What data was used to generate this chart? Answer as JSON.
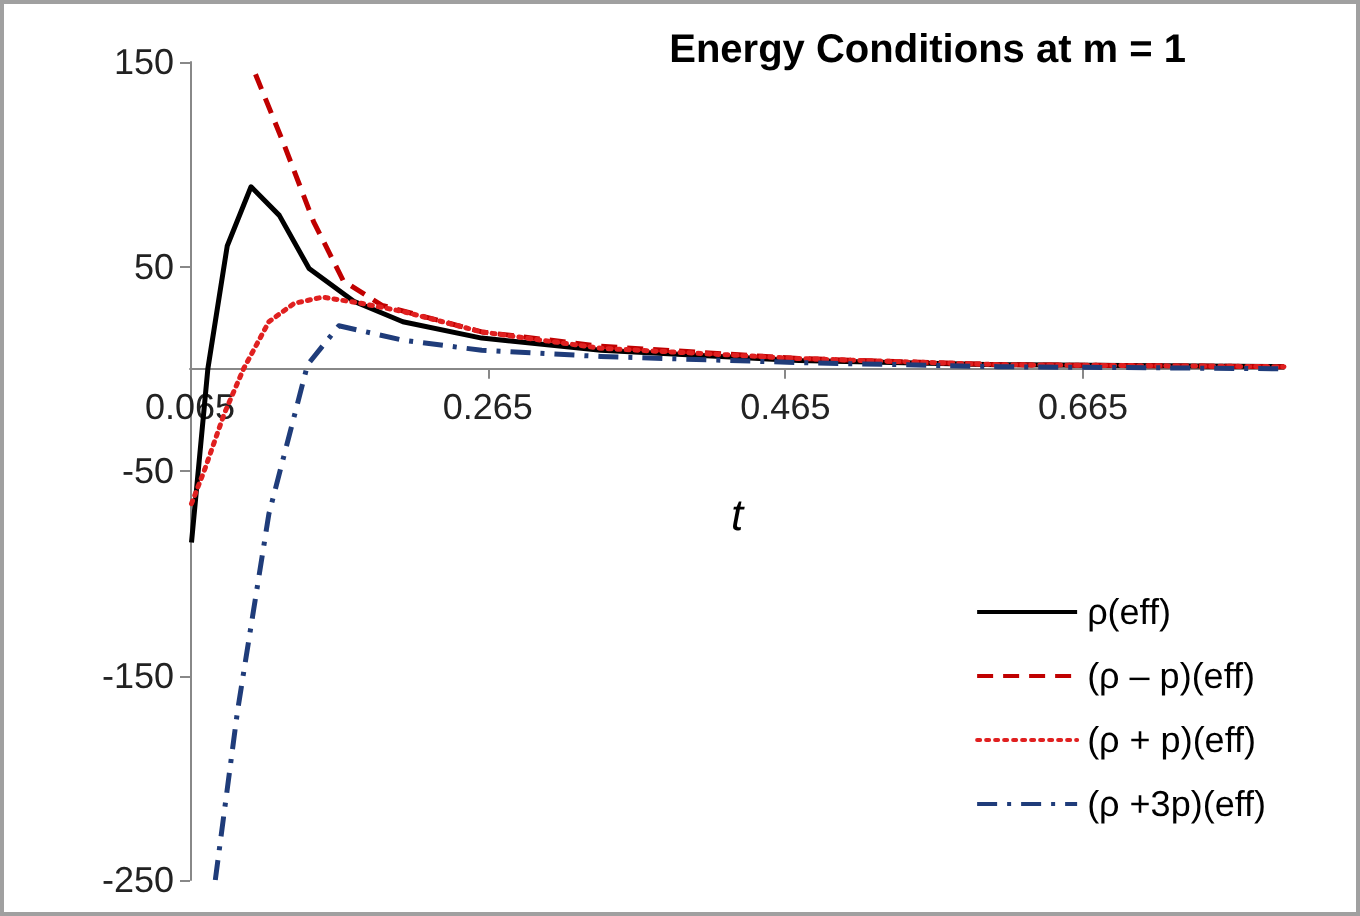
{
  "chart_data": {
    "type": "line",
    "title": "Energy Conditions at m = 1",
    "xlabel": "t",
    "xlim": [
      0.065,
      0.8
    ],
    "xticks": [
      0.065,
      0.265,
      0.465,
      0.665
    ],
    "ylim": [
      -250,
      150
    ],
    "yticks": [
      -250,
      -150,
      -50,
      50,
      150
    ],
    "grid": false,
    "legend": "bottom right",
    "marker": "none",
    "series": [
      {
        "name": "ρ(eff)",
        "color": "#000000",
        "line_style": "solid",
        "x": [
          0.066,
          0.077,
          0.09,
          0.106,
          0.125,
          0.145,
          0.175,
          0.208,
          0.261,
          0.341,
          0.474,
          0.608,
          0.8
        ],
        "values": [
          -85,
          0,
          60,
          89,
          75,
          49,
          33,
          23,
          15,
          9,
          4,
          2,
          1
        ]
      },
      {
        "name": "(ρ – p)(eff)",
        "color": "#c00000",
        "line_style": "dashed",
        "x": [
          0.109,
          0.128,
          0.148,
          0.168,
          0.194,
          0.261,
          0.341,
          0.474,
          0.608,
          0.8
        ],
        "values": [
          144,
          110,
          72,
          43,
          31,
          18,
          11,
          5,
          2,
          1
        ]
      },
      {
        "name": "(ρ + p)(eff)",
        "color": "#e02020",
        "line_style": "dotted",
        "x": [
          0.066,
          0.075,
          0.088,
          0.101,
          0.118,
          0.135,
          0.154,
          0.18,
          0.208,
          0.261,
          0.341,
          0.474,
          0.608,
          0.8
        ],
        "values": [
          -66,
          -49,
          -22,
          0,
          23,
          32,
          35,
          32,
          28,
          18,
          10,
          5,
          2,
          1
        ]
      },
      {
        "name": "(ρ +3p)(eff)",
        "color": "#1f3c7a",
        "line_style": "dashdot",
        "x": [
          0.082,
          0.097,
          0.118,
          0.144,
          0.165,
          0.208,
          0.261,
          0.341,
          0.474,
          0.608,
          0.8
        ],
        "values": [
          -250,
          -167,
          -71,
          2,
          21,
          14,
          9,
          6,
          3,
          1,
          0
        ]
      }
    ]
  }
}
